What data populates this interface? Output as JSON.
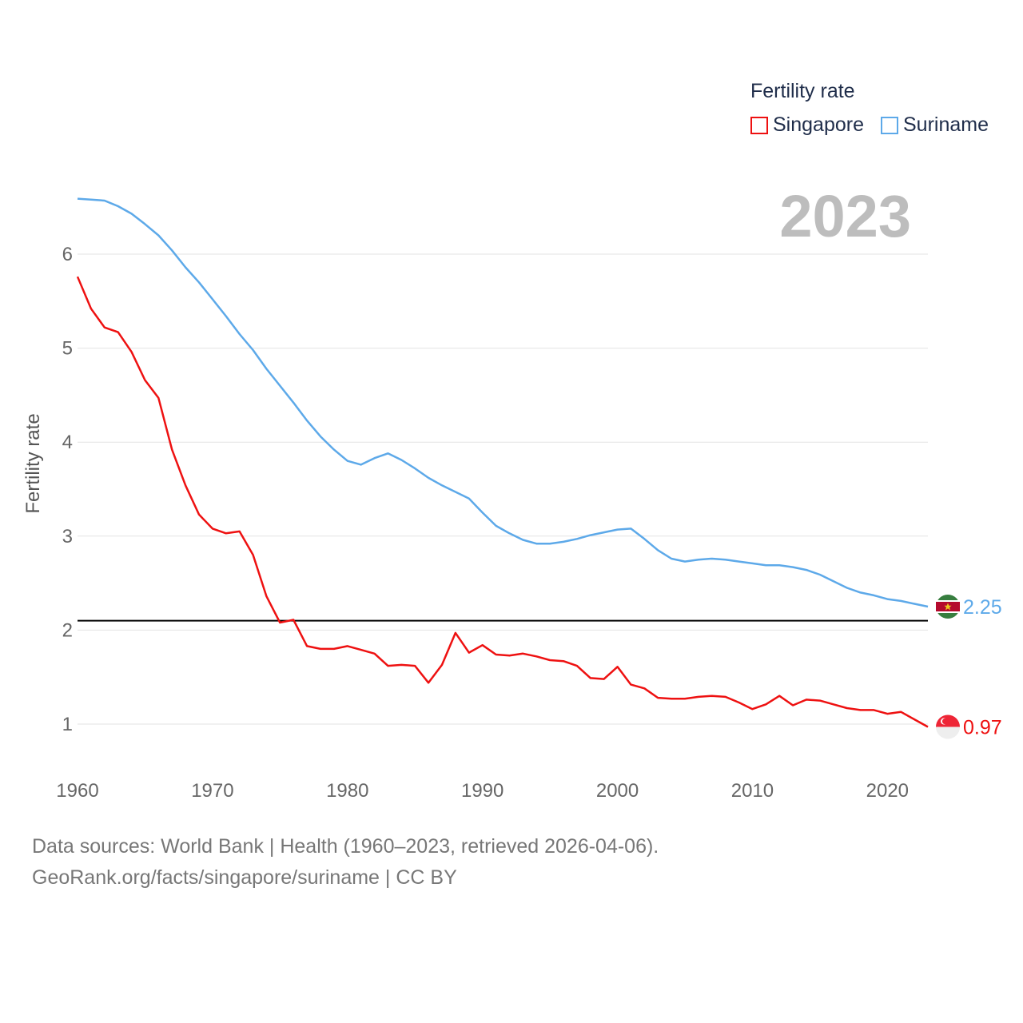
{
  "legend": {
    "title": "Fertility rate",
    "items": [
      {
        "label": "Singapore",
        "color": "#ee1111"
      },
      {
        "label": "Suriname",
        "color": "#5da9e9"
      }
    ]
  },
  "year_label": "2023",
  "footer": {
    "line1": "Data sources: World Bank | Health (1960–2023, retrieved 2026-04-06).",
    "line2": "GeoRank.org/facts/singapore/suriname | CC BY"
  },
  "chart_data": {
    "type": "line",
    "title": "Fertility rate",
    "xlabel": "",
    "ylabel": "Fertility rate",
    "xlim": [
      1960,
      2023
    ],
    "ylim": [
      0.5,
      6.75
    ],
    "xticks": [
      "1960",
      "1970",
      "1980",
      "1990",
      "2000",
      "2010",
      "2020"
    ],
    "yticks": [
      "1",
      "2",
      "3",
      "4",
      "5",
      "6"
    ],
    "grid": true,
    "reference_line": {
      "y": 2.1,
      "color": "#000000"
    },
    "x": [
      1960,
      1961,
      1962,
      1963,
      1964,
      1965,
      1966,
      1967,
      1968,
      1969,
      1970,
      1971,
      1972,
      1973,
      1974,
      1975,
      1976,
      1977,
      1978,
      1979,
      1980,
      1981,
      1982,
      1983,
      1984,
      1985,
      1986,
      1987,
      1988,
      1989,
      1990,
      1991,
      1992,
      1993,
      1994,
      1995,
      1996,
      1997,
      1998,
      1999,
      2000,
      2001,
      2002,
      2003,
      2004,
      2005,
      2006,
      2007,
      2008,
      2009,
      2010,
      2011,
      2012,
      2013,
      2014,
      2015,
      2016,
      2017,
      2018,
      2019,
      2020,
      2021,
      2022,
      2023
    ],
    "series": [
      {
        "name": "Singapore",
        "color": "#ee1111",
        "end_label": "0.97",
        "values": [
          5.76,
          5.42,
          5.22,
          5.17,
          4.96,
          4.66,
          4.47,
          3.92,
          3.54,
          3.23,
          3.08,
          3.03,
          3.05,
          2.8,
          2.36,
          2.08,
          2.11,
          1.83,
          1.8,
          1.8,
          1.83,
          1.79,
          1.75,
          1.62,
          1.63,
          1.62,
          1.44,
          1.63,
          1.97,
          1.76,
          1.84,
          1.74,
          1.73,
          1.75,
          1.72,
          1.68,
          1.67,
          1.62,
          1.49,
          1.48,
          1.61,
          1.42,
          1.38,
          1.28,
          1.27,
          1.27,
          1.29,
          1.3,
          1.29,
          1.23,
          1.16,
          1.21,
          1.3,
          1.2,
          1.26,
          1.25,
          1.21,
          1.17,
          1.15,
          1.15,
          1.11,
          1.13,
          1.05,
          0.97
        ]
      },
      {
        "name": "Suriname",
        "color": "#5da9e9",
        "end_label": "2.25",
        "values": [
          6.59,
          6.58,
          6.57,
          6.51,
          6.43,
          6.32,
          6.2,
          6.04,
          5.86,
          5.7,
          5.52,
          5.34,
          5.15,
          4.98,
          4.78,
          4.6,
          4.42,
          4.23,
          4.06,
          3.92,
          3.8,
          3.76,
          3.83,
          3.88,
          3.81,
          3.72,
          3.62,
          3.54,
          3.47,
          3.4,
          3.25,
          3.11,
          3.03,
          2.96,
          2.92,
          2.92,
          2.94,
          2.97,
          3.01,
          3.04,
          3.07,
          3.08,
          2.97,
          2.85,
          2.76,
          2.73,
          2.75,
          2.76,
          2.75,
          2.73,
          2.71,
          2.69,
          2.69,
          2.67,
          2.64,
          2.59,
          2.52,
          2.45,
          2.4,
          2.37,
          2.33,
          2.31,
          2.28,
          2.25
        ]
      }
    ]
  }
}
